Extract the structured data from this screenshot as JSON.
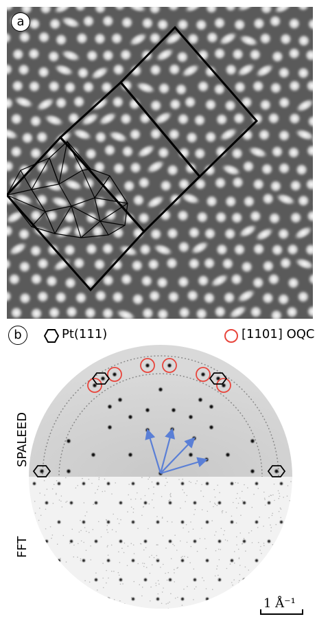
{
  "panel_a": {
    "label": "a"
  },
  "panel_b": {
    "label": "b",
    "legend": {
      "pt_label": "Pt(111)",
      "pt_marker": "hexagon-icon",
      "oqc_label": "[1101] OQC",
      "oqc_marker": "circle-icon",
      "oqc_color": "#e8453c"
    },
    "top_half_label": "SPALEED",
    "bottom_half_label": "FFT",
    "arrow_color": "#5a7fd6",
    "scale_bar_label": "1 Å⁻¹"
  }
}
